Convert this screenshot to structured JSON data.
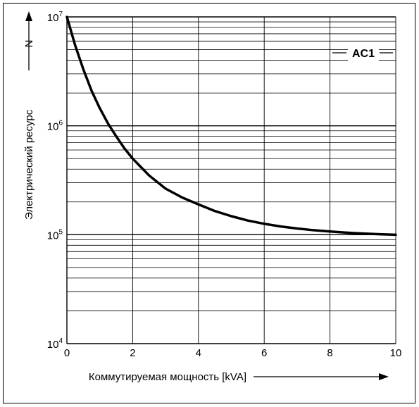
{
  "chart_data": {
    "type": "line",
    "title": "",
    "xlabel": "Коммутируемая мощность [kVA]",
    "ylabel": "Электрический ресурс",
    "ylabel_symbol": "N",
    "xlim": [
      0,
      10
    ],
    "ylim": [
      10000,
      10000000
    ],
    "y_scale": "log",
    "x_ticks": [
      0,
      2,
      4,
      6,
      8,
      10
    ],
    "y_ticks": [
      {
        "value": 10000,
        "base": "10",
        "exp": "4"
      },
      {
        "value": 100000,
        "base": "10",
        "exp": "5"
      },
      {
        "value": 1000000,
        "base": "10",
        "exp": "6"
      },
      {
        "value": 10000000,
        "base": "10",
        "exp": "7"
      }
    ],
    "grid": true,
    "annotation": "AC1",
    "series": [
      {
        "x": [
          0,
          0.25,
          0.5,
          0.75,
          1,
          1.25,
          1.5,
          1.75,
          2,
          2.5,
          3,
          3.5,
          4,
          4.5,
          5,
          5.5,
          6,
          6.5,
          7,
          7.5,
          8,
          8.5,
          9,
          9.5,
          10
        ],
        "y": [
          10000000,
          5500000,
          3300000,
          2100000,
          1450000,
          1050000,
          800000,
          620000,
          500000,
          350000,
          265000,
          220000,
          190000,
          165000,
          148000,
          135000,
          126000,
          119000,
          114000,
          110000,
          107000,
          104500,
          102500,
          101000,
          100000
        ]
      }
    ]
  }
}
